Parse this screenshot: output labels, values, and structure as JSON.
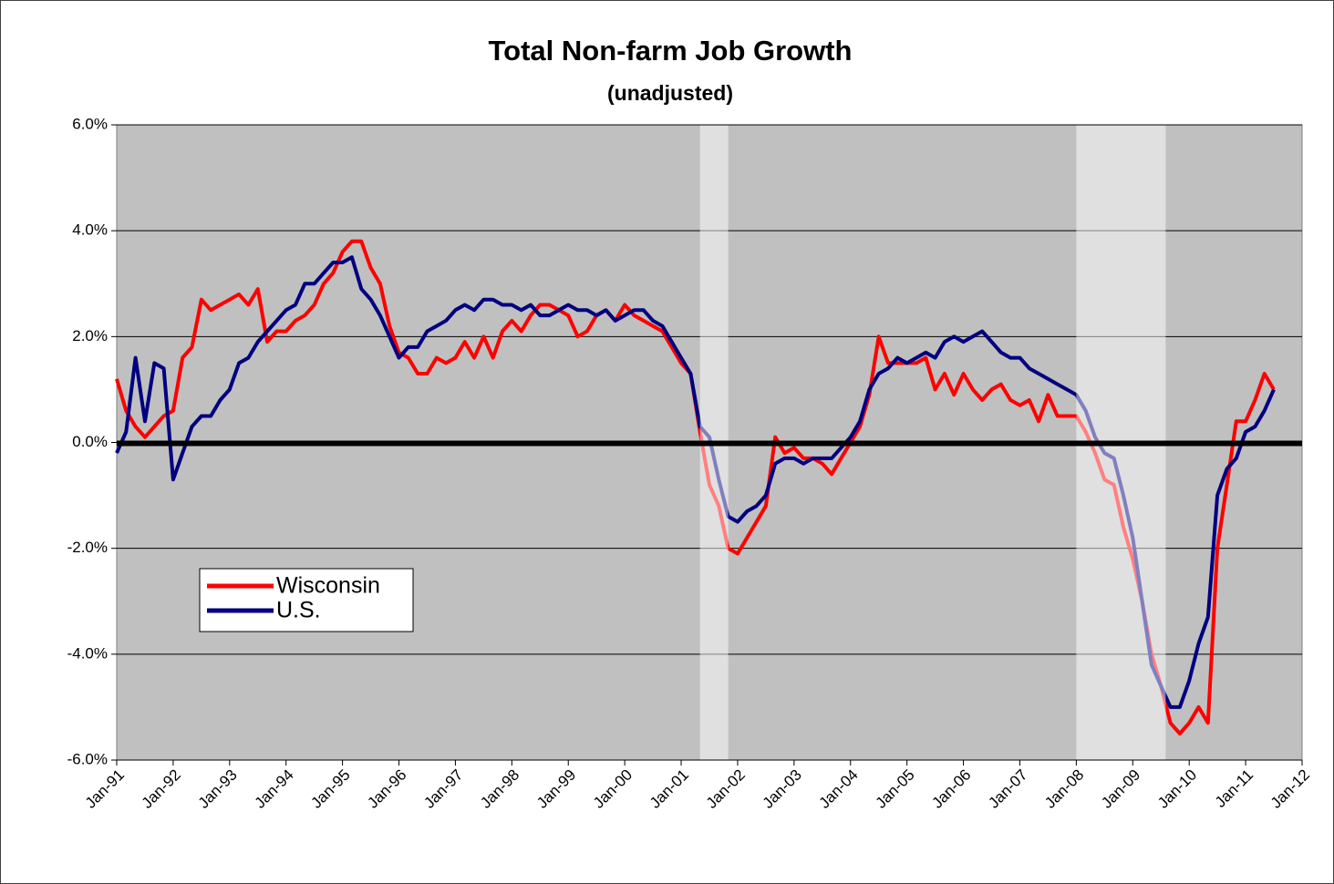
{
  "chart_data": {
    "type": "line",
    "title": "Total Non-farm Job Growth",
    "subtitle": "(unadjusted)",
    "x": [
      "1991-01",
      "1991-03",
      "1991-05",
      "1991-07",
      "1991-09",
      "1991-11",
      "1992-01",
      "1992-03",
      "1992-05",
      "1992-07",
      "1992-09",
      "1992-11",
      "1993-01",
      "1993-03",
      "1993-05",
      "1993-07",
      "1993-09",
      "1993-11",
      "1994-01",
      "1994-03",
      "1994-05",
      "1994-07",
      "1994-09",
      "1994-11",
      "1995-01",
      "1995-03",
      "1995-05",
      "1995-07",
      "1995-09",
      "1995-11",
      "1996-01",
      "1996-03",
      "1996-05",
      "1996-07",
      "1996-09",
      "1996-11",
      "1997-01",
      "1997-03",
      "1997-05",
      "1997-07",
      "1997-09",
      "1997-11",
      "1998-01",
      "1998-03",
      "1998-05",
      "1998-07",
      "1998-09",
      "1998-11",
      "1999-01",
      "1999-03",
      "1999-05",
      "1999-07",
      "1999-09",
      "1999-11",
      "2000-01",
      "2000-03",
      "2000-05",
      "2000-07",
      "2000-09",
      "2000-11",
      "2001-01",
      "2001-03",
      "2001-05",
      "2001-07",
      "2001-09",
      "2001-11",
      "2002-01",
      "2002-03",
      "2002-05",
      "2002-07",
      "2002-09",
      "2002-11",
      "2003-01",
      "2003-03",
      "2003-05",
      "2003-07",
      "2003-09",
      "2003-11",
      "2004-01",
      "2004-03",
      "2004-05",
      "2004-07",
      "2004-09",
      "2004-11",
      "2005-01",
      "2005-03",
      "2005-05",
      "2005-07",
      "2005-09",
      "2005-11",
      "2006-01",
      "2006-03",
      "2006-05",
      "2006-07",
      "2006-09",
      "2006-11",
      "2007-01",
      "2007-03",
      "2007-05",
      "2007-07",
      "2007-09",
      "2007-11",
      "2008-01",
      "2008-03",
      "2008-05",
      "2008-07",
      "2008-09",
      "2008-11",
      "2009-01",
      "2009-03",
      "2009-05",
      "2009-07",
      "2009-09",
      "2009-11",
      "2010-01",
      "2010-03",
      "2010-05",
      "2010-07",
      "2010-09",
      "2010-11",
      "2011-01",
      "2011-03",
      "2011-05",
      "2011-07"
    ],
    "series": [
      {
        "name": "Wisconsin",
        "color": "#ff0000",
        "values": [
          1.2,
          0.6,
          0.3,
          0.1,
          0.3,
          0.5,
          0.6,
          1.6,
          1.8,
          2.7,
          2.5,
          2.6,
          2.7,
          2.8,
          2.6,
          2.9,
          1.9,
          2.1,
          2.1,
          2.3,
          2.4,
          2.6,
          3.0,
          3.2,
          3.6,
          3.8,
          3.8,
          3.3,
          3.0,
          2.2,
          1.7,
          1.6,
          1.3,
          1.3,
          1.6,
          1.5,
          1.6,
          1.9,
          1.6,
          2.0,
          1.6,
          2.1,
          2.3,
          2.1,
          2.4,
          2.6,
          2.6,
          2.5,
          2.4,
          2.0,
          2.1,
          2.4,
          2.5,
          2.3,
          2.6,
          2.4,
          2.3,
          2.2,
          2.1,
          1.8,
          1.5,
          1.3,
          0.2,
          -0.8,
          -1.2,
          -2.0,
          -2.1,
          -1.8,
          -1.5,
          -1.2,
          0.1,
          -0.2,
          -0.1,
          -0.3,
          -0.3,
          -0.4,
          -0.6,
          -0.3,
          0.0,
          0.3,
          0.9,
          2.0,
          1.5,
          1.5,
          1.5,
          1.5,
          1.6,
          1.0,
          1.3,
          0.9,
          1.3,
          1.0,
          0.8,
          1.0,
          1.1,
          0.8,
          0.7,
          0.8,
          0.4,
          0.9,
          0.5,
          0.5,
          0.5,
          0.2,
          -0.2,
          -0.7,
          -0.8,
          -1.6,
          -2.2,
          -3.0,
          -4.0,
          -4.6,
          -5.3,
          -5.5,
          -5.3,
          -5.0,
          -5.3,
          -2.0,
          -0.8,
          0.4,
          0.4,
          0.8,
          1.3,
          1.0
        ]
      },
      {
        "name": "U.S.",
        "color": "#000080",
        "values": [
          -0.2,
          0.2,
          1.6,
          0.4,
          1.5,
          1.4,
          -0.7,
          -0.2,
          0.3,
          0.5,
          0.5,
          0.8,
          1.0,
          1.5,
          1.6,
          1.9,
          2.1,
          2.3,
          2.5,
          2.6,
          3.0,
          3.0,
          3.2,
          3.4,
          3.4,
          3.5,
          2.9,
          2.7,
          2.4,
          2.0,
          1.6,
          1.8,
          1.8,
          2.1,
          2.2,
          2.3,
          2.5,
          2.6,
          2.5,
          2.7,
          2.7,
          2.6,
          2.6,
          2.5,
          2.6,
          2.4,
          2.4,
          2.5,
          2.6,
          2.5,
          2.5,
          2.4,
          2.5,
          2.3,
          2.4,
          2.5,
          2.5,
          2.3,
          2.2,
          1.9,
          1.6,
          1.3,
          0.3,
          0.1,
          -0.7,
          -1.4,
          -1.5,
          -1.3,
          -1.2,
          -1.0,
          -0.4,
          -0.3,
          -0.3,
          -0.4,
          -0.3,
          -0.3,
          -0.3,
          -0.1,
          0.1,
          0.4,
          1.0,
          1.3,
          1.4,
          1.6,
          1.5,
          1.6,
          1.7,
          1.6,
          1.9,
          2.0,
          1.9,
          2.0,
          2.1,
          1.9,
          1.7,
          1.6,
          1.6,
          1.4,
          1.3,
          1.2,
          1.1,
          1.0,
          0.9,
          0.6,
          0.1,
          -0.2,
          -0.3,
          -1.0,
          -1.8,
          -3.0,
          -4.2,
          -4.6,
          -5.0,
          -5.0,
          -4.5,
          -3.8,
          -3.3,
          -1.0,
          -0.5,
          -0.3,
          0.2,
          0.3,
          0.6,
          1.0
        ]
      }
    ],
    "xlim": [
      "1991-01",
      "2012-01"
    ],
    "xticks": [
      {
        "value": "1991-01",
        "label": "Jan-91"
      },
      {
        "value": "1992-01",
        "label": "Jan-92"
      },
      {
        "value": "1993-01",
        "label": "Jan-93"
      },
      {
        "value": "1994-01",
        "label": "Jan-94"
      },
      {
        "value": "1995-01",
        "label": "Jan-95"
      },
      {
        "value": "1996-01",
        "label": "Jan-96"
      },
      {
        "value": "1997-01",
        "label": "Jan-97"
      },
      {
        "value": "1998-01",
        "label": "Jan-98"
      },
      {
        "value": "1999-01",
        "label": "Jan-99"
      },
      {
        "value": "2000-01",
        "label": "Jan-00"
      },
      {
        "value": "2001-01",
        "label": "Jan-01"
      },
      {
        "value": "2002-01",
        "label": "Jan-02"
      },
      {
        "value": "2003-01",
        "label": "Jan-03"
      },
      {
        "value": "2004-01",
        "label": "Jan-04"
      },
      {
        "value": "2005-01",
        "label": "Jan-05"
      },
      {
        "value": "2006-01",
        "label": "Jan-06"
      },
      {
        "value": "2007-01",
        "label": "Jan-07"
      },
      {
        "value": "2008-01",
        "label": "Jan-08"
      },
      {
        "value": "2009-01",
        "label": "Jan-09"
      },
      {
        "value": "2010-01",
        "label": "Jan-10"
      },
      {
        "value": "2011-01",
        "label": "Jan-11"
      },
      {
        "value": "2012-01",
        "label": "Jan-12"
      }
    ],
    "ylim": [
      -6,
      6
    ],
    "yticks": [
      {
        "value": -6,
        "label": "-6.0%"
      },
      {
        "value": -4,
        "label": "-4.0%"
      },
      {
        "value": -2,
        "label": "-2.0%"
      },
      {
        "value": 0,
        "label": "0.0%"
      },
      {
        "value": 2,
        "label": "2.0%"
      },
      {
        "value": 4,
        "label": "4.0%"
      },
      {
        "value": 6,
        "label": "6.0%"
      }
    ],
    "grid": true,
    "zero_line": true,
    "shaded_periods": [
      [
        "2001-05",
        "2001-11"
      ],
      [
        "2008-01",
        "2009-08"
      ]
    ],
    "legend": "lower left"
  }
}
